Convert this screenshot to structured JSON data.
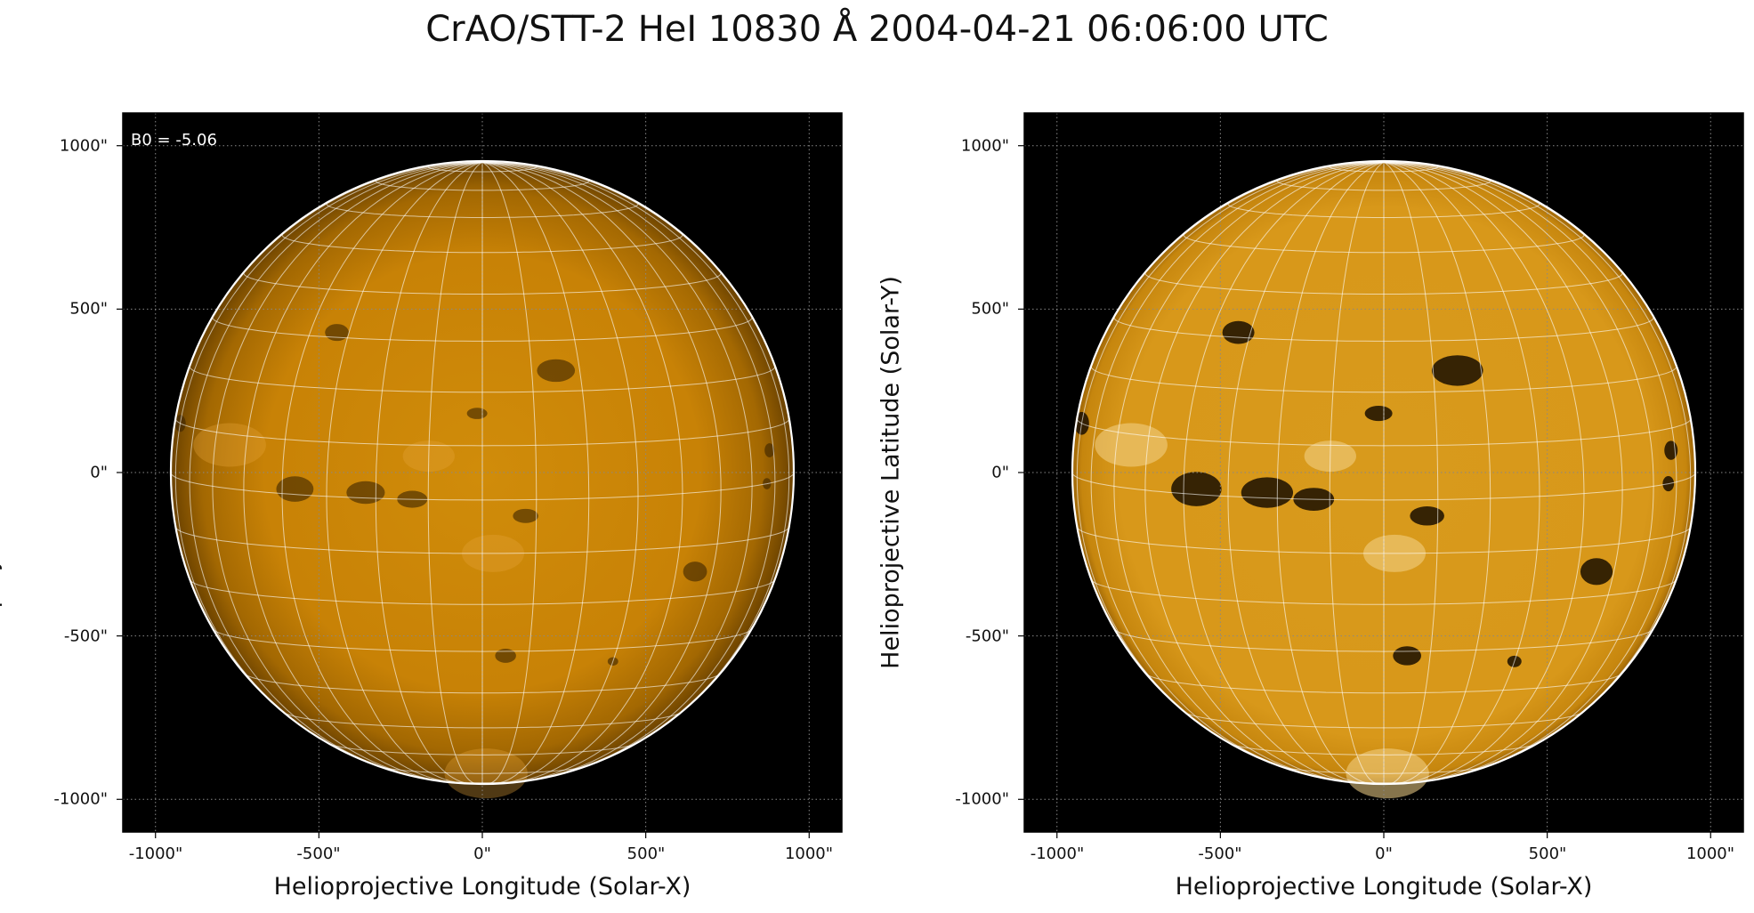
{
  "title": "CrAO/STT-2 HeI 10830 Å 2004-04-21 06:06:00 UTC",
  "axes": {
    "x_label": "Helioprojective Longitude (Solar-X)",
    "y_label": "Helioprojective Latitude (Solar-Y)",
    "x_ticks": [
      "-1000\"",
      "-500\"",
      "0\"",
      "500\"",
      "1000\""
    ],
    "y_ticks": [
      "1000\"",
      "500\"",
      "0\"",
      "-500\"",
      "-1000\""
    ],
    "x_tick_values": [
      -1000,
      -500,
      0,
      500,
      1000
    ],
    "y_tick_values": [
      1000,
      500,
      0,
      -500,
      -1000
    ],
    "range_arcsec": [
      -1100,
      1100
    ],
    "solar_radius_arcsec": 953
  },
  "panels": [
    {
      "id": "left",
      "annotation": "B0 = -5.06",
      "style": "smooth"
    },
    {
      "id": "right",
      "annotation": "",
      "style": "enhanced"
    }
  ],
  "colors": {
    "background": "#000000",
    "disk_center": "#d08c0a",
    "disk_limb": "#6b4200",
    "grid": "#ffffff",
    "limb_outline": "#ffffff"
  },
  "grid": {
    "heliographic_spacing_deg": 10,
    "b0_deg": -5.06,
    "axis_grid": "dotted"
  },
  "features": [
    {
      "lon": -37,
      "lat": 1,
      "size": 4.5
    },
    {
      "lon": -22,
      "lat": 1,
      "size": 4
    },
    {
      "lon": -13,
      "lat": 0,
      "size": 3
    },
    {
      "lon": 15,
      "lat": 24,
      "size": 4
    },
    {
      "lon": -33,
      "lat": 31,
      "size": 3
    },
    {
      "lon": 45,
      "lat": -15,
      "size": 3.5
    },
    {
      "lon": 8,
      "lat": -3,
      "size": 2.5
    },
    {
      "lon": -1,
      "lat": 16,
      "size": 2
    },
    {
      "lon": 68,
      "lat": 6,
      "size": 2.5
    },
    {
      "lon": 66,
      "lat": 0,
      "size": 2
    },
    {
      "lon": 5,
      "lat": -31,
      "size": 2.5
    },
    {
      "lon": 30,
      "lat": -33,
      "size": 1.5
    },
    {
      "lon": -80,
      "lat": 10,
      "size": 3
    }
  ],
  "plages": [
    {
      "lon": -55,
      "lat": 8,
      "size": 7
    },
    {
      "lon": 2,
      "lat": -10,
      "size": 6
    },
    {
      "lon": -10,
      "lat": 8,
      "size": 5
    },
    {
      "lon": 2,
      "lat": -70,
      "size": 8
    }
  ]
}
